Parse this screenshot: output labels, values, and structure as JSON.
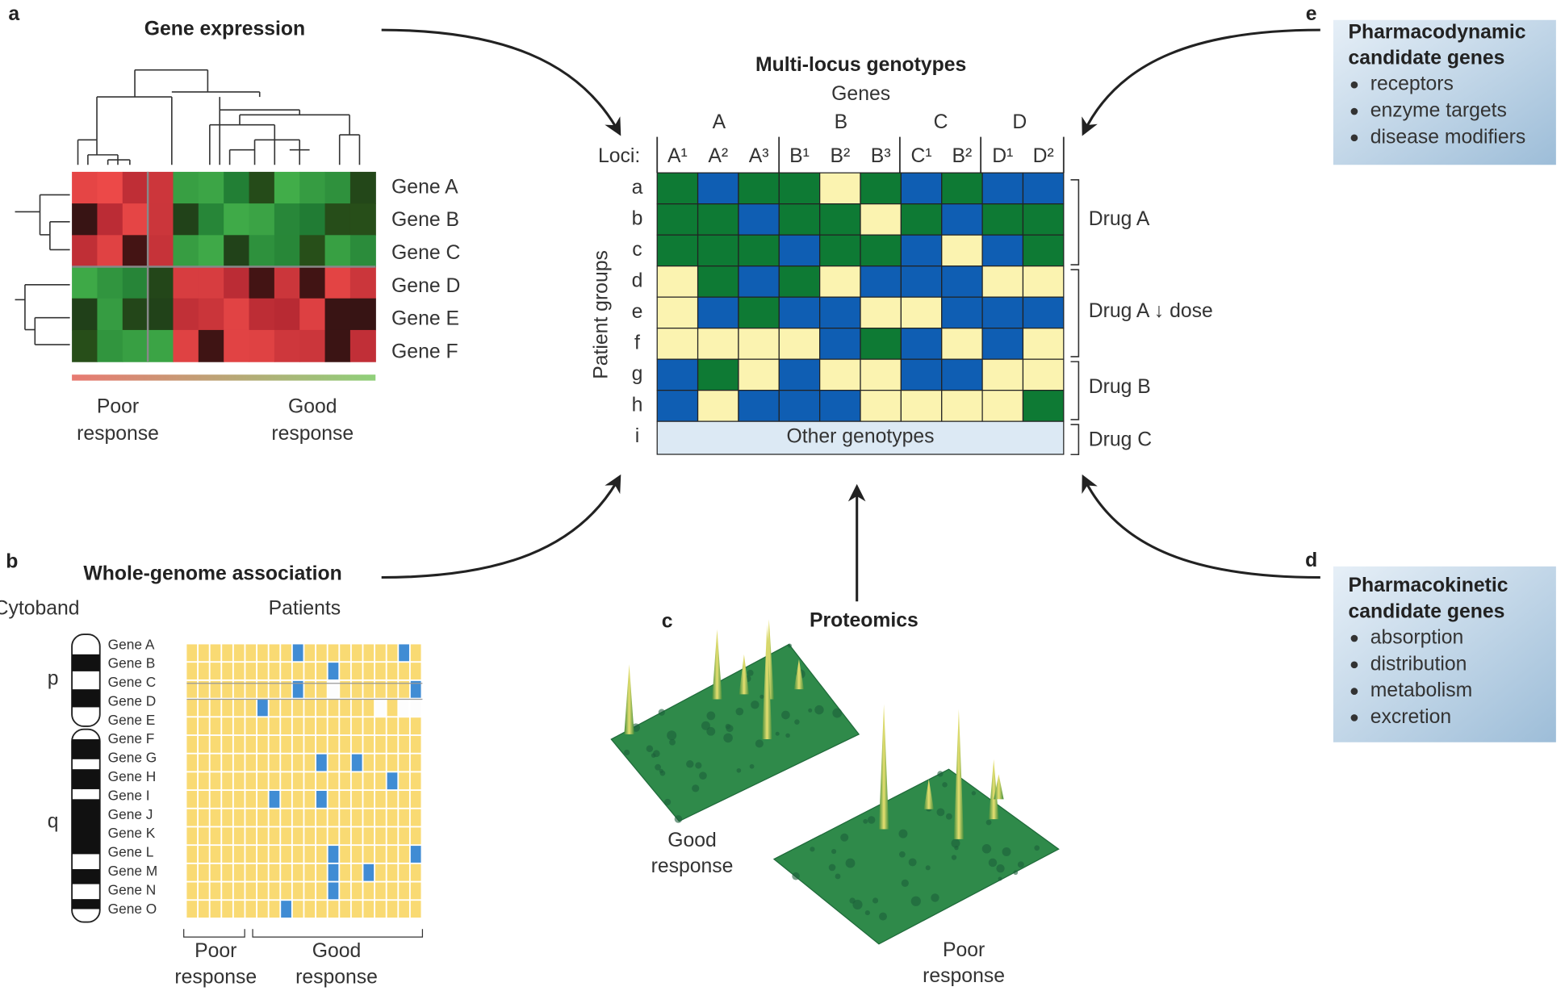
{
  "panel_a": {
    "letter": "a",
    "title": "Gene expression",
    "genes": [
      "Gene A",
      "Gene B",
      "Gene C",
      "Gene D",
      "Gene E",
      "Gene F"
    ],
    "poor": [
      "Poor",
      "response"
    ],
    "good": [
      "Good",
      "response"
    ]
  },
  "center": {
    "title": "Multi-locus genotypes",
    "genes_label": "Genes",
    "gene_groups": [
      "A",
      "B",
      "C",
      "D"
    ],
    "loci_label": "Loci:",
    "loci": [
      "A¹",
      "A²",
      "A³",
      "B¹",
      "B²",
      "B³",
      "C¹",
      "B²",
      "D¹",
      "D²"
    ],
    "axis_label": "Patient groups",
    "rows": [
      "a",
      "b",
      "c",
      "d",
      "e",
      "f",
      "g",
      "h",
      "i"
    ],
    "other": "Other genotypes",
    "drugs": [
      "Drug A",
      "Drug A ↓ dose",
      "Drug B",
      "Drug C"
    ]
  },
  "panel_e": {
    "letter": "e",
    "title": [
      "Pharmacodynamic",
      "candidate genes"
    ],
    "items": [
      "receptors",
      "enzyme targets",
      "disease modifiers"
    ]
  },
  "panel_d": {
    "letter": "d",
    "title": [
      "Pharmacokinetic",
      "candidate genes"
    ],
    "items": [
      "absorption",
      "distribution",
      "metabolism",
      "excretion"
    ]
  },
  "panel_b": {
    "letter": "b",
    "title": "Whole-genome association",
    "cytoband": "Cytoband",
    "patients": "Patients",
    "arms": [
      "p",
      "q"
    ],
    "genes": [
      "Gene A",
      "Gene B",
      "Gene C",
      "Gene D",
      "Gene E",
      "Gene F",
      "Gene G",
      "Gene H",
      "Gene I",
      "Gene J",
      "Gene K",
      "Gene L",
      "Gene M",
      "Gene N",
      "Gene O"
    ],
    "poor": [
      "Poor",
      "response"
    ],
    "good": [
      "Good",
      "response"
    ]
  },
  "panel_c": {
    "letter": "c",
    "title": "Proteomics",
    "good": [
      "Good",
      "response"
    ],
    "poor": [
      "Poor",
      "response"
    ]
  }
}
